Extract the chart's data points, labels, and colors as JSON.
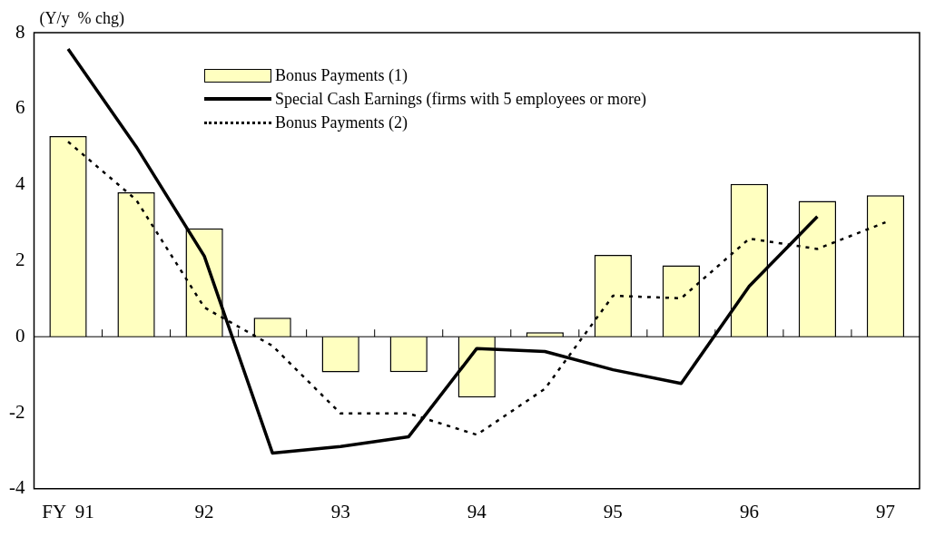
{
  "chart_data": {
    "type": "bar",
    "ylabel": "(Y/y  % chg)",
    "categories": [
      "FY  91",
      null,
      "92",
      null,
      "93",
      null,
      "94",
      null,
      "95",
      null,
      "96",
      null,
      "97"
    ],
    "series": [
      {
        "name": "Bonus Payments (1)",
        "color": "#ffffc0",
        "values": [
          5.28,
          3.8,
          2.85,
          0.5,
          -0.94,
          -0.93,
          -1.6,
          0.12,
          2.15,
          1.88,
          4.02,
          3.57,
          3.72
        ]
      },
      {
        "name": "Special Cash Earnings (firms with 5 employees or more)",
        "type": "line",
        "color": "#000000",
        "line_style": "solid",
        "values": [
          7.57,
          5.0,
          2.12,
          -3.06,
          -2.89,
          -2.63,
          -0.31,
          -0.39,
          -0.87,
          -1.23,
          1.33,
          3.16,
          null
        ]
      },
      {
        "name": "Bonus Payments (2)",
        "type": "line",
        "color": "#000000",
        "line_style": "dotted",
        "values": [
          5.13,
          3.6,
          0.77,
          -0.24,
          -2.02,
          -2.02,
          -2.58,
          -1.37,
          1.08,
          1.01,
          2.58,
          2.31,
          3.01
        ]
      }
    ],
    "ylim": [
      -4,
      8
    ],
    "yticks": [
      -4,
      -2,
      0,
      2,
      4,
      6,
      8
    ],
    "grid": false,
    "legend": "top",
    "marker": "none",
    "ref_lines": [
      {
        "axis": "y",
        "value": 0,
        "color": "#000000",
        "line_style": "solid"
      }
    ]
  }
}
